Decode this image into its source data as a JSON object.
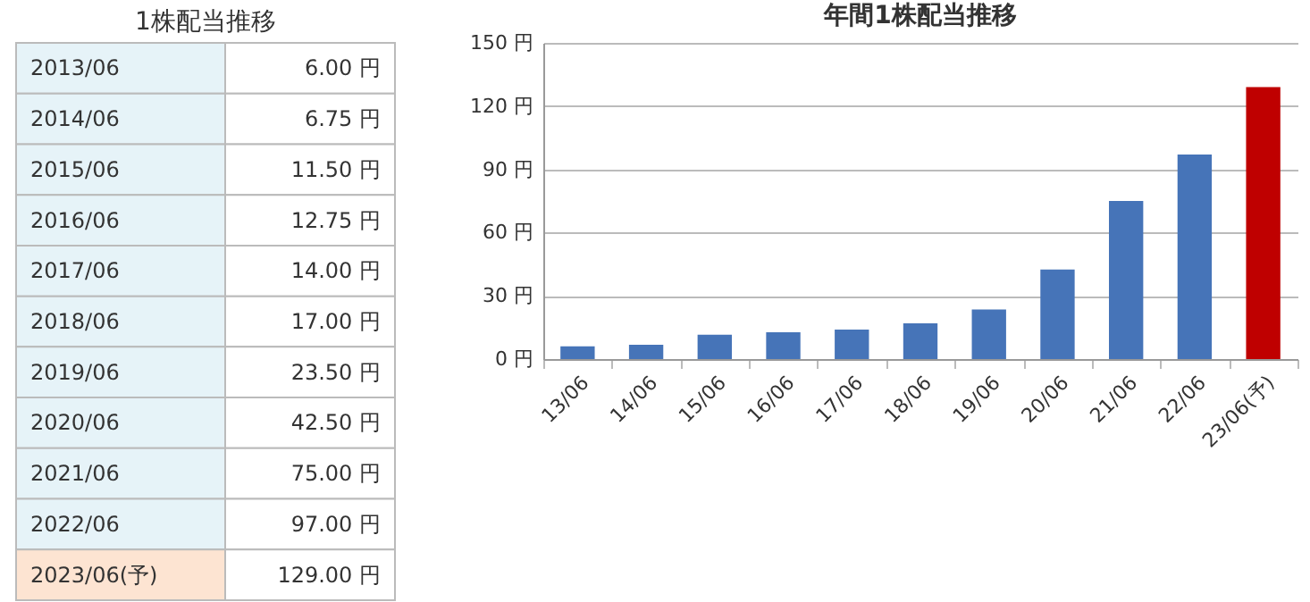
{
  "chart_data": [
    {
      "type": "other",
      "title": "1株配当推移",
      "categories": [
        "2013/06",
        "2014/06",
        "2015/06",
        "2016/06",
        "2017/06",
        "2018/06",
        "2019/06",
        "2020/06",
        "2021/06",
        "2022/06",
        "2023/06(予)"
      ],
      "value_labels": [
        "6.00 円",
        "6.75 円",
        "11.50 円",
        "12.75 円",
        "14.00 円",
        "17.00 円",
        "23.50 円",
        "42.50 円",
        "75.00 円",
        "97.00 円",
        "129.00 円"
      ],
      "colors": [
        "#e6f3f8",
        "#e6f3f8",
        "#e6f3f8",
        "#e6f3f8",
        "#e6f3f8",
        "#e6f3f8",
        "#e6f3f8",
        "#e6f3f8",
        "#e6f3f8",
        "#e6f3f8",
        "#fde4d2"
      ]
    },
    {
      "type": "bar",
      "title": "年間1株配当推移",
      "categories": [
        "13/06",
        "14/06",
        "15/06",
        "16/06",
        "17/06",
        "18/06",
        "19/06",
        "20/06",
        "21/06",
        "22/06",
        "23/06(予)"
      ],
      "values": [
        6,
        6.75,
        11.5,
        12.75,
        14,
        17,
        23.5,
        42.5,
        75,
        97,
        129
      ],
      "colors": [
        "#4674b8",
        "#4674b8",
        "#4674b8",
        "#4674b8",
        "#4674b8",
        "#4674b8",
        "#4674b8",
        "#4674b8",
        "#4674b8",
        "#4674b8",
        "#bf0000"
      ],
      "ylim": [
        0,
        150
      ],
      "yticks": [
        {
          "value": 0,
          "label": "0 円"
        },
        {
          "value": 30,
          "label": "30 円"
        },
        {
          "value": 60,
          "label": "60 円"
        },
        {
          "value": 90,
          "label": "90 円"
        },
        {
          "value": 120,
          "label": "120 円"
        },
        {
          "value": 150,
          "label": "150 円"
        }
      ],
      "grid": "y"
    }
  ]
}
